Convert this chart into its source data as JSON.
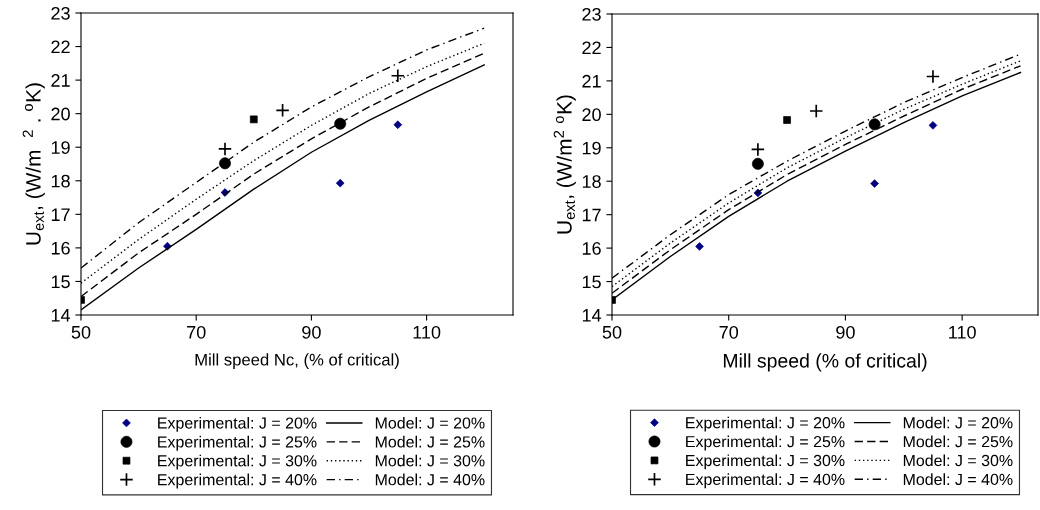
{
  "chart_data": [
    {
      "type": "scatter",
      "xlabel": "Mill speed Nc, (% of critical)",
      "ylabel": "U$_{ext}$, (W/m  $^{2}$ . $^{o}$K)",
      "xlim": [
        50,
        125
      ],
      "xticks": [
        50,
        70,
        90,
        110
      ],
      "ylim": [
        14,
        23
      ],
      "yticks": [
        14,
        15,
        16,
        17,
        18,
        19,
        20,
        21,
        22,
        23
      ],
      "grid": false,
      "legend": "bottom",
      "series": [
        {
          "name": "Experimental: J = 20%",
          "marker": "diamond",
          "color": "#000080",
          "x": [
            65,
            75,
            95,
            105
          ],
          "values": [
            16.05,
            17.65,
            17.93,
            19.67
          ]
        },
        {
          "name": "Model: J = 20%",
          "type": "line",
          "line_style": "solid",
          "marker": "none",
          "color": "#000000",
          "x": [
            50,
            60,
            70,
            80,
            90,
            100,
            110,
            120
          ],
          "values": [
            14.15,
            15.4,
            16.55,
            17.75,
            18.85,
            19.8,
            20.65,
            21.45
          ]
        },
        {
          "name": "Experimental: J = 25%",
          "marker": "circle",
          "color": "#000000",
          "x": [
            75,
            95
          ],
          "values": [
            18.52,
            19.7
          ]
        },
        {
          "name": "Model: J = 25%",
          "type": "line",
          "line_style": "dashed",
          "marker": "none",
          "color": "#000000",
          "x": [
            50,
            60,
            70,
            80,
            90,
            100,
            110,
            120
          ],
          "values": [
            14.55,
            15.85,
            17.0,
            18.2,
            19.25,
            20.2,
            21.05,
            21.8
          ]
        },
        {
          "name": "Experimental: J = 30%",
          "marker": "square",
          "color": "#000000",
          "x": [
            50,
            80
          ],
          "values": [
            14.45,
            19.83
          ]
        },
        {
          "name": "Model: J = 30%",
          "type": "line",
          "line_style": "dotted",
          "marker": "none",
          "color": "#000000",
          "x": [
            50,
            60,
            70,
            80,
            90,
            100,
            110,
            120
          ],
          "values": [
            14.95,
            16.25,
            17.45,
            18.6,
            19.65,
            20.6,
            21.4,
            22.1
          ]
        },
        {
          "name": "Experimental: J = 40%",
          "marker": "cross",
          "color": "#000000",
          "x": [
            75,
            85,
            105
          ],
          "values": [
            18.95,
            20.1,
            21.13
          ]
        },
        {
          "name": "Model: J = 40%",
          "type": "line",
          "line_style": "dashdot",
          "marker": "none",
          "color": "#000000",
          "x": [
            50,
            60,
            70,
            80,
            90,
            100,
            110,
            120
          ],
          "values": [
            15.4,
            16.75,
            17.95,
            19.15,
            20.2,
            21.1,
            21.9,
            22.55
          ]
        }
      ]
    },
    {
      "type": "scatter",
      "xlabel": "Mill speed (% of critical)",
      "ylabel": "U$_{ext}$, (W/m$^{2}$ $^{o}$K)",
      "xlim": [
        50,
        123
      ],
      "xticks": [
        50,
        70,
        90,
        110
      ],
      "ylim": [
        14,
        23
      ],
      "yticks": [
        14,
        15,
        16,
        17,
        18,
        19,
        20,
        21,
        22,
        23
      ],
      "grid": false,
      "legend": "bottom",
      "series": [
        {
          "name": "Experimental: J = 20%",
          "marker": "diamond",
          "color": "#000080",
          "x": [
            65,
            75,
            95,
            105
          ],
          "values": [
            16.05,
            17.65,
            17.93,
            19.67
          ]
        },
        {
          "name": "Model: J = 20%",
          "type": "line",
          "line_style": "solid",
          "marker": "none",
          "color": "#000000",
          "x": [
            50,
            60,
            70,
            80,
            90,
            100,
            110,
            120
          ],
          "values": [
            14.45,
            15.75,
            16.95,
            18.0,
            18.9,
            19.75,
            20.55,
            21.25
          ]
        },
        {
          "name": "Experimental: J = 25%",
          "marker": "circle",
          "color": "#000000",
          "x": [
            75,
            95
          ],
          "values": [
            18.52,
            19.7
          ]
        },
        {
          "name": "Model: J = 25%",
          "type": "line",
          "line_style": "dashed",
          "marker": "none",
          "color": "#000000",
          "x": [
            50,
            60,
            70,
            80,
            90,
            100,
            110,
            120
          ],
          "values": [
            14.65,
            15.95,
            17.15,
            18.2,
            19.1,
            19.95,
            20.75,
            21.45
          ]
        },
        {
          "name": "Experimental: J = 30%",
          "marker": "square",
          "color": "#000000",
          "x": [
            50,
            80
          ],
          "values": [
            14.45,
            19.83
          ]
        },
        {
          "name": "Model: J = 30%",
          "type": "line",
          "line_style": "dotted",
          "marker": "none",
          "color": "#000000",
          "x": [
            50,
            60,
            70,
            80,
            90,
            100,
            110,
            120
          ],
          "values": [
            14.85,
            16.15,
            17.35,
            18.4,
            19.3,
            20.15,
            20.9,
            21.6
          ]
        },
        {
          "name": "Experimental: J = 40%",
          "marker": "cross",
          "color": "#000000",
          "x": [
            75,
            85,
            105
          ],
          "values": [
            18.95,
            20.1,
            21.13
          ]
        },
        {
          "name": "Model: J = 40%",
          "type": "line",
          "line_style": "dashdot",
          "marker": "none",
          "color": "#000000",
          "x": [
            50,
            60,
            70,
            80,
            90,
            100,
            110,
            120
          ],
          "values": [
            15.1,
            16.4,
            17.6,
            18.6,
            19.5,
            20.35,
            21.1,
            21.8
          ]
        }
      ]
    }
  ]
}
